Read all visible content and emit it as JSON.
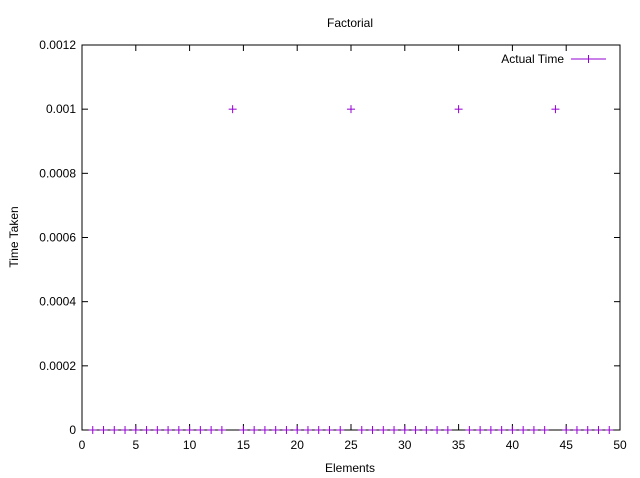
{
  "chart_data": {
    "type": "scatter",
    "title": "Factorial",
    "xlabel": "Elements",
    "ylabel": "Time Taken",
    "xlim": [
      0,
      50
    ],
    "ylim": [
      0,
      0.0012
    ],
    "xticks": [
      0,
      5,
      10,
      15,
      20,
      25,
      30,
      35,
      40,
      45,
      50
    ],
    "xtick_labels": [
      "0",
      "5",
      "10",
      "15",
      "20",
      "25",
      "30",
      "35",
      "40",
      "45",
      "50"
    ],
    "yticks": [
      0,
      0.0002,
      0.0004,
      0.0006,
      0.0008,
      0.001,
      0.0012
    ],
    "ytick_labels": [
      "0",
      "0.0002",
      "0.0004",
      "0.0006",
      "0.0008",
      "0.001",
      "0.0012"
    ],
    "grid": false,
    "legend_position": "top-right",
    "series": [
      {
        "name": "Actual Time",
        "color": "#9400d3",
        "marker": "plus",
        "x": [
          1,
          2,
          3,
          4,
          5,
          6,
          7,
          8,
          9,
          10,
          11,
          12,
          13,
          14,
          15,
          16,
          17,
          18,
          19,
          20,
          21,
          22,
          23,
          24,
          25,
          26,
          27,
          28,
          29,
          30,
          31,
          32,
          33,
          34,
          35,
          36,
          37,
          38,
          39,
          40,
          41,
          42,
          43,
          44,
          45,
          46,
          47,
          48,
          49
        ],
        "y": [
          0,
          0,
          0,
          0,
          0,
          0,
          0,
          0,
          0,
          0,
          0,
          0,
          0,
          0.001,
          0,
          0,
          0,
          0,
          0,
          0,
          0,
          0,
          0,
          0,
          0.001,
          0,
          0,
          0,
          0,
          0,
          0,
          0,
          0,
          0,
          0.001,
          0,
          0,
          0,
          0,
          0,
          0,
          0,
          0,
          0.001,
          0,
          0,
          0,
          0,
          0
        ]
      }
    ]
  }
}
